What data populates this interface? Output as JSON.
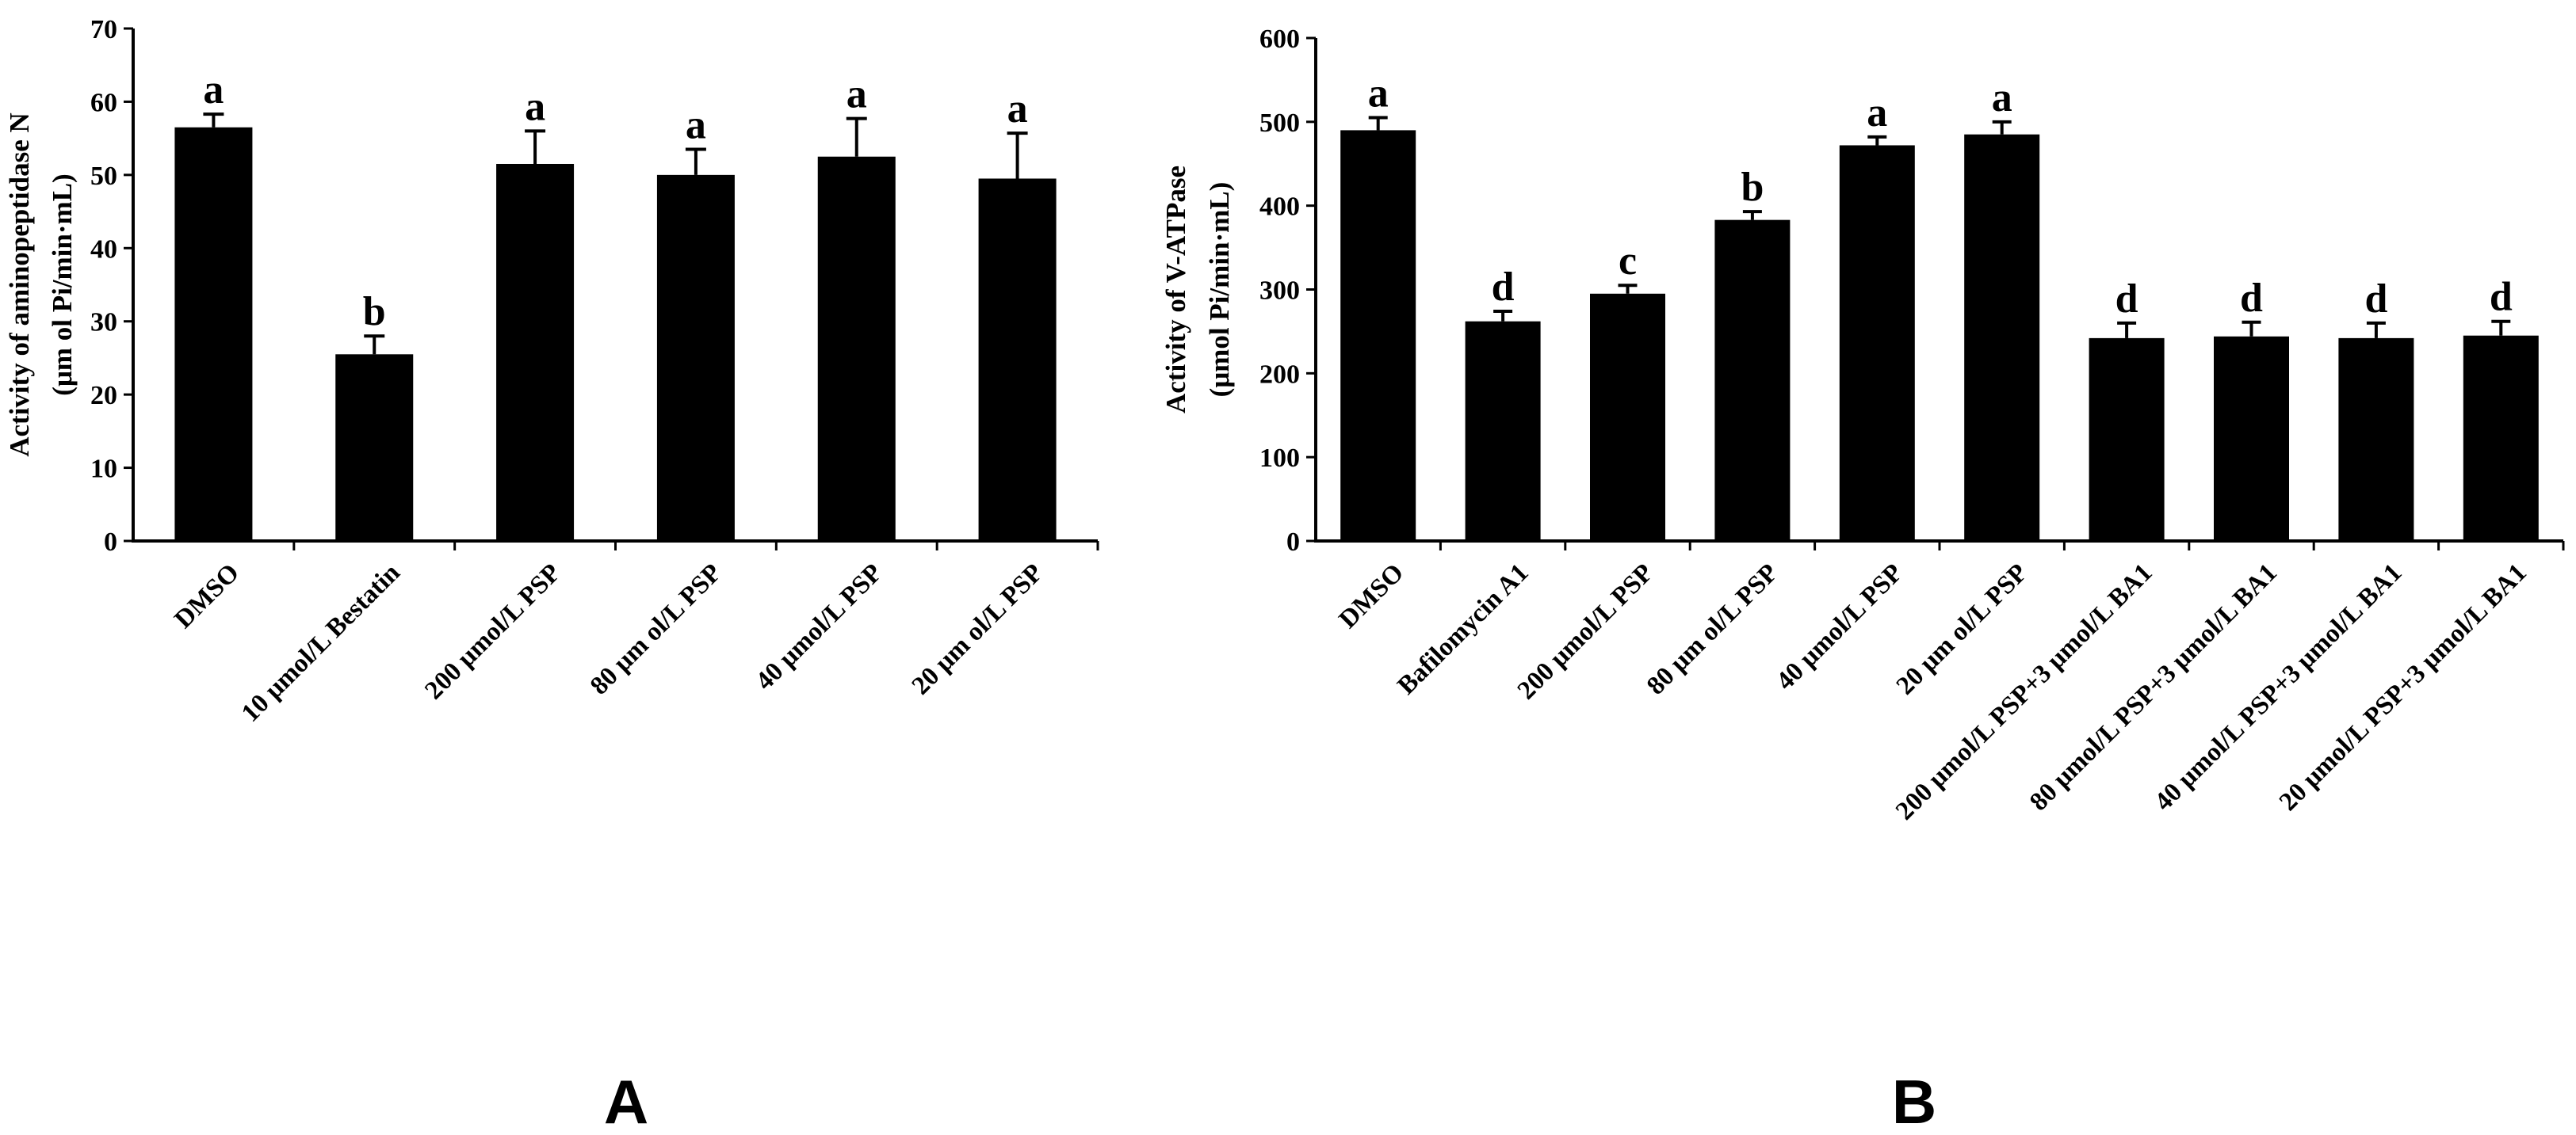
{
  "chart_data": [
    {
      "type": "bar",
      "panel_label": "A",
      "title": "",
      "xlabel": "",
      "ylabel": "Activity of aminopeptidase N",
      "ylabel_unit": "(μm ol Pi/min·mL)",
      "ylim": [
        0,
        70
      ],
      "yticks": [
        0,
        10,
        20,
        30,
        40,
        50,
        60,
        70
      ],
      "grid": false,
      "categories": [
        "DMSO",
        "10 μmol/L Bestatin",
        "200 μmol/L PSP",
        "80 μm ol/L PSP",
        "40 μmol/L PSP",
        "20 μm ol/L PSP"
      ],
      "values": [
        56.5,
        25.5,
        51.5,
        50,
        52.5,
        49.5
      ],
      "errors": [
        1.8,
        2.5,
        4.5,
        3.5,
        5.2,
        6.2
      ],
      "letters": [
        "a",
        "b",
        "a",
        "a",
        "a",
        "a"
      ]
    },
    {
      "type": "bar",
      "panel_label": "B",
      "title": "",
      "xlabel": "",
      "ylabel": "Activity of V-ATPase",
      "ylabel_unit": "(μmol Pi/min·mL)",
      "ylim": [
        0,
        600
      ],
      "yticks": [
        0,
        100,
        200,
        300,
        400,
        500,
        600
      ],
      "grid": false,
      "categories": [
        "DMSO",
        "Bafilomycin A1",
        "200 μmol/L PSP",
        "80 μm ol/L PSP",
        "40 μmol/L PSP",
        "20 μm ol/L PSP",
        "200 μmol/L PSP+3 μmol/L BA1",
        "80 μmol/L PSP+3 μmol/L BA1",
        "40 μmol/L PSP+3 μmol/L BA1",
        "20 μmol/L PSP+3 μmol/L BA1"
      ],
      "values": [
        490,
        262,
        295,
        383,
        472,
        485,
        242,
        244,
        242,
        245
      ],
      "errors": [
        15,
        12,
        10,
        10,
        10,
        15,
        18,
        17,
        18,
        17
      ],
      "letters": [
        "a",
        "d",
        "c",
        "b",
        "a",
        "a",
        "d",
        "d",
        "d",
        "d"
      ]
    }
  ]
}
